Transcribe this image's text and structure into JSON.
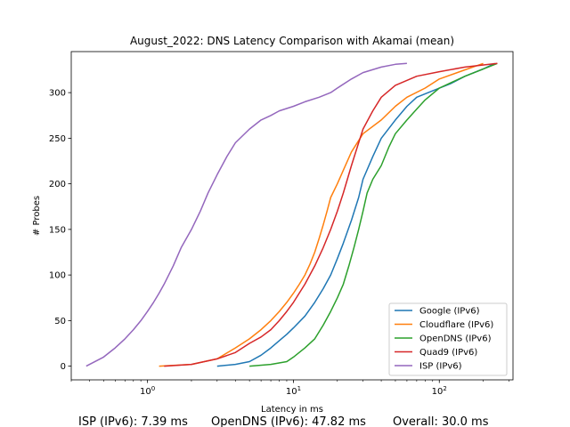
{
  "chart_data": {
    "type": "line",
    "title": "August_2022: DNS Latency Comparison with Akamai (mean)",
    "xlabel": "Latency in ms",
    "ylabel": "# Probes",
    "xscale": "log",
    "xlim": [
      0.3,
      320
    ],
    "ylim": [
      -15,
      345
    ],
    "x_ticks": [
      1,
      10,
      100
    ],
    "x_tick_labels": [
      "10^0",
      "10^1",
      "10^2"
    ],
    "y_ticks": [
      0,
      50,
      100,
      150,
      200,
      250,
      300
    ],
    "y_tick_labels": [
      "0",
      "50",
      "100",
      "150",
      "200",
      "250",
      "300"
    ],
    "grid": false,
    "legend_position": "lower right",
    "series": [
      {
        "name": "Google (IPv6)",
        "color": "#1f77b4",
        "x": [
          3.0,
          4.0,
          5.0,
          6.0,
          7.0,
          8.0,
          9.0,
          10.0,
          12.0,
          14.0,
          16.0,
          18.0,
          20.0,
          22.0,
          25.0,
          28.0,
          30.0,
          35.0,
          40.0,
          50.0,
          60.0,
          70.0,
          90.0,
          120.0,
          150.0,
          200.0,
          240.0
        ],
        "y": [
          0,
          2,
          5,
          12,
          20,
          28,
          35,
          42,
          55,
          70,
          85,
          100,
          118,
          135,
          160,
          185,
          205,
          230,
          250,
          270,
          285,
          295,
          302,
          310,
          318,
          326,
          332
        ]
      },
      {
        "name": "Cloudflare (IPv6)",
        "color": "#ff7f0e",
        "x": [
          1.2,
          2.0,
          3.0,
          4.0,
          5.0,
          6.0,
          7.0,
          8.0,
          9.0,
          10.0,
          11.0,
          12.0,
          13.0,
          14.0,
          15.0,
          16.0,
          17.0,
          18.0,
          20.0,
          22.0,
          25.0,
          30.0,
          40.0,
          50.0,
          60.0,
          80.0,
          100.0,
          150.0,
          200.0
        ],
        "y": [
          0,
          2,
          8,
          20,
          30,
          40,
          50,
          60,
          70,
          80,
          90,
          100,
          112,
          125,
          140,
          155,
          170,
          185,
          200,
          215,
          235,
          255,
          270,
          285,
          295,
          305,
          315,
          325,
          332
        ]
      },
      {
        "name": "OpenDNS (IPv6)",
        "color": "#2ca02c",
        "x": [
          5.0,
          7.0,
          9.0,
          10.0,
          12.0,
          14.0,
          16.0,
          18.0,
          20.0,
          22.0,
          24.0,
          26.0,
          28.0,
          30.0,
          32.0,
          35.0,
          40.0,
          45.0,
          50.0,
          60.0,
          70.0,
          80.0,
          100.0,
          150.0,
          250.0
        ],
        "y": [
          0,
          2,
          5,
          10,
          20,
          30,
          45,
          60,
          75,
          90,
          110,
          130,
          150,
          170,
          190,
          205,
          220,
          240,
          255,
          270,
          282,
          292,
          305,
          318,
          332
        ]
      },
      {
        "name": "Quad9 (IPv6)",
        "color": "#d62728",
        "x": [
          1.3,
          2.0,
          3.0,
          4.0,
          5.0,
          6.0,
          7.0,
          8.0,
          9.0,
          10.0,
          12.0,
          14.0,
          16.0,
          18.0,
          20.0,
          22.0,
          25.0,
          28.0,
          30.0,
          35.0,
          40.0,
          50.0,
          70.0,
          100.0,
          150.0,
          250.0
        ],
        "y": [
          0,
          2,
          8,
          15,
          25,
          32,
          40,
          50,
          60,
          70,
          90,
          110,
          130,
          150,
          170,
          190,
          220,
          245,
          260,
          280,
          295,
          308,
          318,
          323,
          328,
          332
        ]
      },
      {
        "name": "ISP (IPv6)",
        "color": "#9467bd",
        "x": [
          0.38,
          0.5,
          0.6,
          0.7,
          0.8,
          0.9,
          1.0,
          1.1,
          1.2,
          1.3,
          1.5,
          1.7,
          2.0,
          2.3,
          2.6,
          3.0,
          3.5,
          4.0,
          5.0,
          6.0,
          7.0,
          8.0,
          10.0,
          12.0,
          15.0,
          18.0,
          20.0,
          25.0,
          30.0,
          40.0,
          50.0,
          60.0
        ],
        "y": [
          0,
          10,
          20,
          30,
          40,
          50,
          60,
          70,
          80,
          90,
          110,
          130,
          150,
          170,
          190,
          210,
          230,
          245,
          260,
          270,
          275,
          280,
          285,
          290,
          295,
          300,
          305,
          315,
          322,
          328,
          331,
          332
        ]
      }
    ],
    "annotations": [
      "ISP (IPv6): 7.39 ms",
      "OpenDNS (IPv6): 47.82 ms",
      "Overall: 30.0 ms"
    ]
  }
}
